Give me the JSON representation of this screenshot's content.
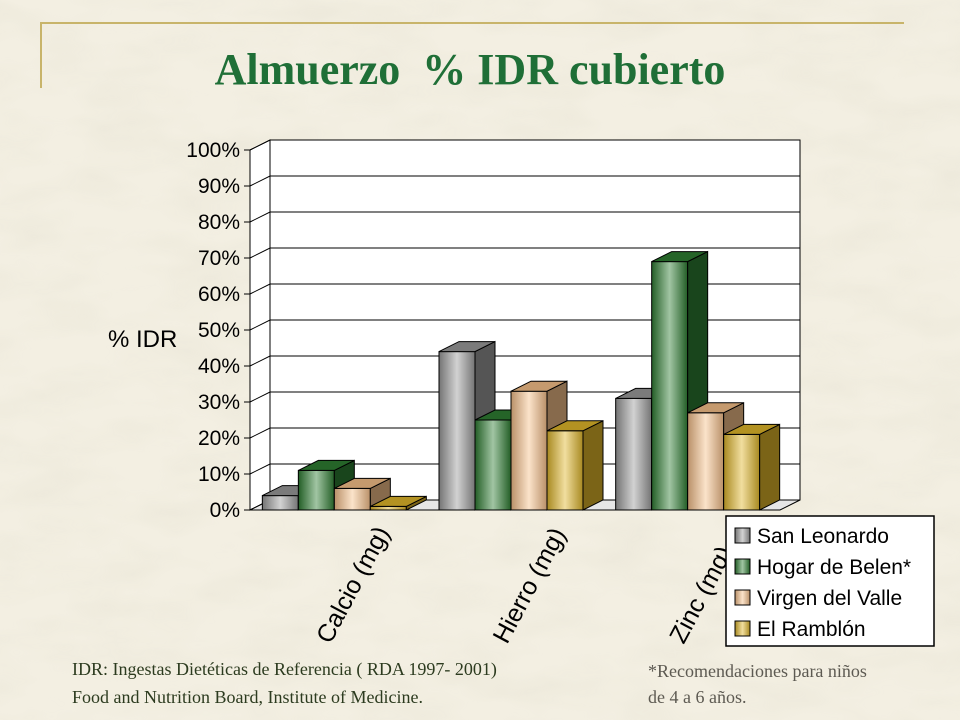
{
  "title": "Almuerzo  % IDR cubierto",
  "chart_data": {
    "type": "bar",
    "categories": [
      "Calcio (mg)",
      "Hierro (mg)",
      "Zinc (mg)"
    ],
    "series": [
      {
        "name": "San Leonardo",
        "values": [
          4,
          44,
          31
        ]
      },
      {
        "name": "Hogar de Belen*",
        "values": [
          11,
          25,
          69
        ]
      },
      {
        "name": "Virgen del Valle",
        "values": [
          6,
          33,
          27
        ]
      },
      {
        "name": "El Ramblón",
        "values": [
          1,
          22,
          21
        ]
      }
    ],
    "ylabel": "% IDR",
    "ylim": [
      0,
      100
    ],
    "yticks": [
      "0%",
      "10%",
      "20%",
      "30%",
      "40%",
      "50%",
      "60%",
      "70%",
      "80%",
      "90%",
      "100%"
    ],
    "grid": true,
    "legend": "bottom-right",
    "colors": [
      "#9a9a9a",
      "#2e7d32",
      "#f6c08a",
      "#e0b62a"
    ]
  },
  "footnote": {
    "line1": "IDR: Ingestas Dietéticas de Referencia ( RDA 1997- 2001)",
    "line2": "Food and Nutrition Board, Institute of  Medicine."
  },
  "note": {
    "line1": "*Recomendaciones para niños",
    "line2": "de 4 a 6 años."
  }
}
